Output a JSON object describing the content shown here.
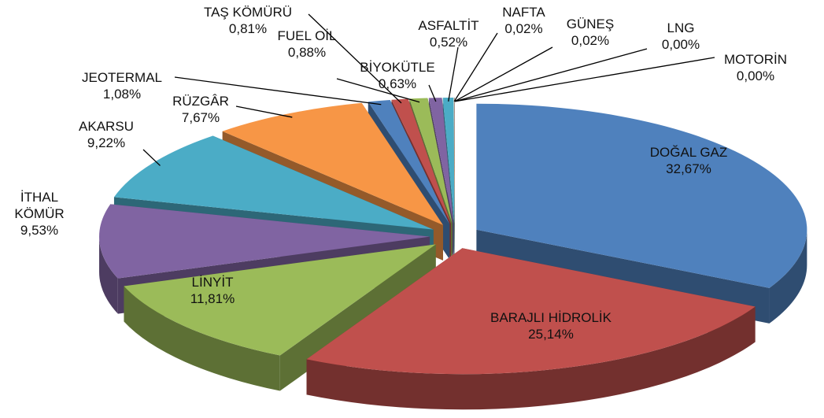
{
  "chart_data": {
    "type": "pie3d",
    "categories": [
      "DOĞAL GAZ",
      "BARAJLI HİDROLİK",
      "LİNYİT",
      "İTHAL KÖMÜR",
      "AKARSU",
      "RÜZGÂR",
      "JEOTERMAL",
      "TAŞ KÖMÜRÜ",
      "FUEL OİL",
      "BİYOKÜTLE",
      "ASFALTİT",
      "NAFTA",
      "GÜNEŞ",
      "LNG",
      "MOTORİN"
    ],
    "values": [
      32.67,
      25.14,
      11.81,
      9.53,
      9.22,
      7.67,
      1.08,
      0.81,
      0.88,
      0.63,
      0.52,
      0.02,
      0.02,
      0.0,
      0.0
    ],
    "value_labels": [
      "32,67%",
      "25,14%",
      "11,81%",
      "9,53%",
      "9,22%",
      "7,67%",
      "1,08%",
      "0,81%",
      "0,88%",
      "0,63%",
      "0,52%",
      "0,02%",
      "0,02%",
      "0,00%",
      "0,00%"
    ],
    "colors": [
      "#4f81bd",
      "#c0504d",
      "#9bbb59",
      "#8064a2",
      "#4bacc6",
      "#f79646",
      "#4f81bd",
      "#c0504d",
      "#9bbb59",
      "#8064a2",
      "#4bacc6",
      "#f79646",
      "#4f81bd",
      "#c0504d",
      "#9bbb59"
    ]
  }
}
